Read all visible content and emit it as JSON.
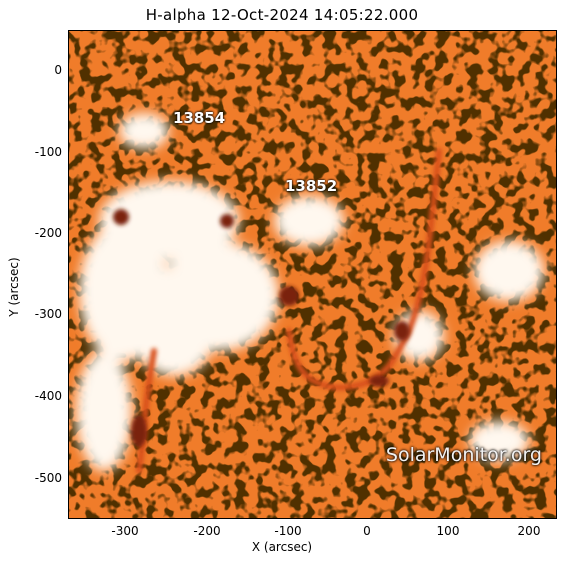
{
  "title": "H-alpha 12-Oct-2024 14:05:22.000",
  "axes": {
    "xlabel": "X (arcsec)",
    "ylabel": "Y (arcsec)",
    "xticks": [
      "-300",
      "-200",
      "-100",
      "0",
      "100",
      "200"
    ],
    "yticks": [
      "0",
      "-100",
      "-200",
      "-300",
      "-400",
      "-500"
    ]
  },
  "regions": [
    {
      "number": "13854"
    },
    {
      "number": "13852"
    }
  ],
  "watermark": "SolarMonitor.org"
}
